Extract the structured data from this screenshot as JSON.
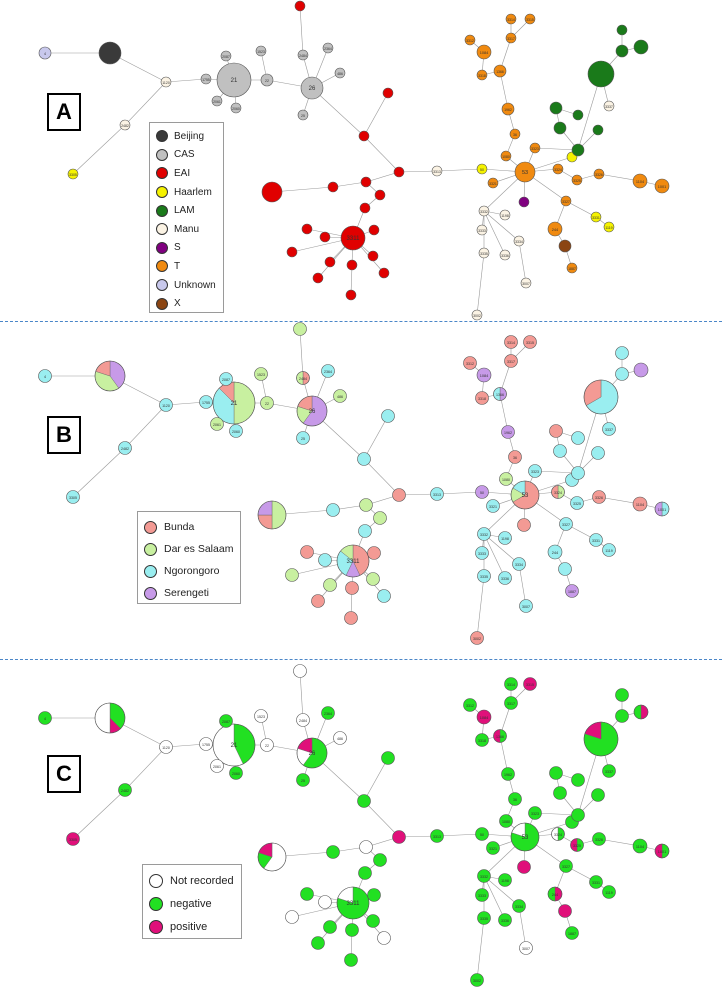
{
  "panels": [
    {
      "label": "A"
    },
    {
      "label": "B"
    },
    {
      "label": "C"
    }
  ],
  "legend_A": [
    {
      "name": "Beijing",
      "color": "#3a3a3a"
    },
    {
      "name": "CAS",
      "color": "#c0c0c0"
    },
    {
      "name": "EAI",
      "color": "#e00000"
    },
    {
      "name": "Haarlem",
      "color": "#f5f200"
    },
    {
      "name": "LAM",
      "color": "#1a7a1a"
    },
    {
      "name": "Manu",
      "color": "#fbf3e4"
    },
    {
      "name": "S",
      "color": "#800080"
    },
    {
      "name": "T",
      "color": "#f08a10"
    },
    {
      "name": "Unknown",
      "color": "#c8c8ec"
    },
    {
      "name": "X",
      "color": "#8b4513"
    }
  ],
  "legend_B": [
    {
      "name": "Bunda",
      "color": "#f39a94"
    },
    {
      "name": "Dar es Salaam",
      "color": "#c8f0a0"
    },
    {
      "name": "Ngorongoro",
      "color": "#9aeef0"
    },
    {
      "name": "Serengeti",
      "color": "#c79ae8"
    }
  ],
  "legend_C": [
    {
      "name": "Not recorded",
      "color": "#ffffff"
    },
    {
      "name": "negative",
      "color": "#22e022"
    },
    {
      "name": "positive",
      "color": "#e0107a"
    }
  ],
  "node_labels": {
    "n_4": "4",
    "n_21": "21",
    "n_22": "22",
    "n_26": "26",
    "n_25": "25",
    "n_1755": "1755",
    "n_2061": "2061",
    "n_2087": "2087",
    "n_2060": "2060",
    "n_1523": "1523",
    "n_2484": "2484",
    "n_2364": "2364",
    "n_486": "486",
    "n_702": "702",
    "n_1120": "1120",
    "n_53": "53",
    "n_50": "50",
    "n_45": "45",
    "n_42": "42",
    "n_244": "244",
    "n_36": "36",
    "n_1196": "1196",
    "n_2488": "2488",
    "n_119": "119",
    "n_2496": "2496",
    "n_1198": "1198",
    "n_2734": "2734",
    "n_1524": "1524",
    "n_127": "127",
    "n_4057": "4057",
    "n_2482": "2482",
    "n_3337": "3337",
    "n_3007": "3007",
    "n_3002": "3002",
    "n_1887": "1887",
    "n_125": "125",
    "n_3311": "3311",
    "n_3314": "3314",
    "n_3313": "3313",
    "n_3312": "3312",
    "n_3315": "3315",
    "n_3317": "3317",
    "n_3321": "3321",
    "n_3323": "3323",
    "n_3324": "3324",
    "n_3325": "3325",
    "n_3326": "3326",
    "n_3327": "3327",
    "n_3331": "3331",
    "n_3332": "3332",
    "n_3333": "3333",
    "n_3334": "3334",
    "n_3335": "3335",
    "n_3336": "3336",
    "n_3305": "3305",
    "n_1080": "1080",
    "n_4096": "4096",
    "n_3281": "3281",
    "n_1366": "1366",
    "n_1962": "1962",
    "n_1084": "1084",
    "n_107": "107",
    "n_1067": "1067",
    "n_1009": "1009",
    "n_40": "40",
    "n_18": "18",
    "n_10": "10",
    "n_148": "148",
    "n_1340": "1340",
    "n_1881": "1881",
    "n_2403": "2403",
    "n_1063": "1063",
    "n_1086": "1086",
    "n_2000": "2000",
    "n_1104": "1104",
    "n_1001": "1001",
    "n_1119": "1119",
    "n_3318": "3318",
    "n_11": "11",
    "n_12": "12",
    "n_13": "13",
    "n_14": "14",
    "n_15": "15",
    "n_16": "16",
    "n_17": "17",
    "n_19": "19",
    "n_20": "20",
    "n_23": "23",
    "n_24": "24",
    "n_27": "27",
    "n_28": "28",
    "n_29": "29",
    "n_30": "30",
    "n_31": "31",
    "n_32": "32",
    "n_33": "33",
    "n_34": "34",
    "n_35": "35",
    "n_37": "37",
    "n_38": "38",
    "n_39": "39",
    "n_41": "41",
    "n_43": "43",
    "n_44": "44",
    "n_46": "46",
    "n_47": "47",
    "n_48": "48",
    "n_49": "49",
    "n_51": "51",
    "n_52": "52",
    "n_54": "54",
    "n_55": "55",
    "n_56": "56",
    "n_57": "57",
    "n_58": "58",
    "n_59": "59",
    "n_60": "60",
    "n_61": "61",
    "n_62": "62",
    "n_63": "63",
    "n_64": "64",
    "n_65": "65",
    "n_66": "66",
    "n_67": "67"
  }
}
